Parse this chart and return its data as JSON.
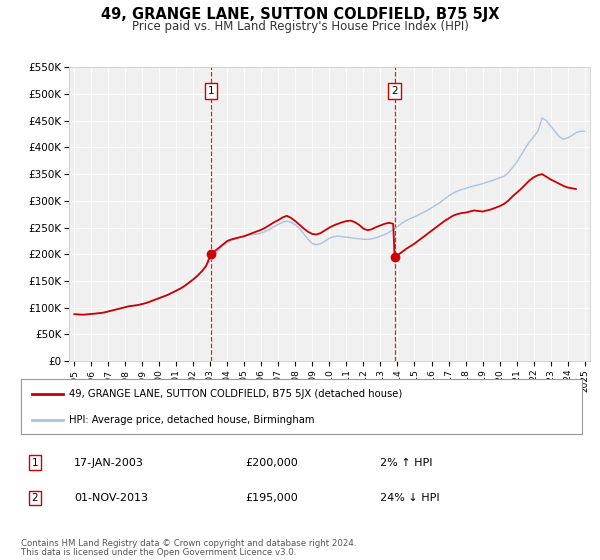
{
  "title": "49, GRANGE LANE, SUTTON COLDFIELD, B75 5JX",
  "subtitle": "Price paid vs. HM Land Registry's House Price Index (HPI)",
  "hpi_color": "#a8c4e0",
  "price_color": "#cc0000",
  "plot_bg": "#f0f0f0",
  "fig_bg": "#ffffff",
  "legend_entries": [
    "49, GRANGE LANE, SUTTON COLDFIELD, B75 5JX (detached house)",
    "HPI: Average price, detached house, Birmingham"
  ],
  "marker1_x": 2003.04,
  "marker1_y": 200000,
  "marker1_note": "17-JAN-2003",
  "marker1_amount": "£200,000",
  "marker1_pct": "2% ↑ HPI",
  "marker2_x": 2013.83,
  "marker2_y": 195000,
  "marker2_note": "01-NOV-2013",
  "marker2_amount": "£195,000",
  "marker2_pct": "24% ↓ HPI",
  "footer1": "Contains HM Land Registry data © Crown copyright and database right 2024.",
  "footer2": "This data is licensed under the Open Government Licence v3.0.",
  "ylim": [
    0,
    550000
  ],
  "yticks": [
    0,
    50000,
    100000,
    150000,
    200000,
    250000,
    300000,
    350000,
    400000,
    450000,
    500000,
    550000
  ],
  "ytick_labels": [
    "£0",
    "£50K",
    "£100K",
    "£150K",
    "£200K",
    "£250K",
    "£300K",
    "£350K",
    "£400K",
    "£450K",
    "£500K",
    "£550K"
  ],
  "xlim_start": 1994.7,
  "xlim_end": 2025.3,
  "hpi_data": [
    [
      1995.0,
      88000
    ],
    [
      1995.25,
      87500
    ],
    [
      1995.5,
      87000
    ],
    [
      1995.75,
      87500
    ],
    [
      1996.0,
      88500
    ],
    [
      1996.25,
      89000
    ],
    [
      1996.5,
      90000
    ],
    [
      1996.75,
      91000
    ],
    [
      1997.0,
      93000
    ],
    [
      1997.25,
      95000
    ],
    [
      1997.5,
      97000
    ],
    [
      1997.75,
      99000
    ],
    [
      1998.0,
      101000
    ],
    [
      1998.25,
      103000
    ],
    [
      1998.5,
      104000
    ],
    [
      1998.75,
      105000
    ],
    [
      1999.0,
      107000
    ],
    [
      1999.25,
      109000
    ],
    [
      1999.5,
      112000
    ],
    [
      1999.75,
      115000
    ],
    [
      2000.0,
      118000
    ],
    [
      2000.25,
      121000
    ],
    [
      2000.5,
      124000
    ],
    [
      2000.75,
      128000
    ],
    [
      2001.0,
      132000
    ],
    [
      2001.25,
      136000
    ],
    [
      2001.5,
      141000
    ],
    [
      2001.75,
      147000
    ],
    [
      2002.0,
      153000
    ],
    [
      2002.25,
      160000
    ],
    [
      2002.5,
      168000
    ],
    [
      2002.75,
      178000
    ],
    [
      2003.0,
      188000
    ],
    [
      2003.25,
      198000
    ],
    [
      2003.5,
      208000
    ],
    [
      2003.75,
      216000
    ],
    [
      2004.0,
      222000
    ],
    [
      2004.25,
      226000
    ],
    [
      2004.5,
      229000
    ],
    [
      2004.75,
      232000
    ],
    [
      2005.0,
      234000
    ],
    [
      2005.25,
      236000
    ],
    [
      2005.5,
      237000
    ],
    [
      2005.75,
      238000
    ],
    [
      2006.0,
      240000
    ],
    [
      2006.25,
      243000
    ],
    [
      2006.5,
      247000
    ],
    [
      2006.75,
      252000
    ],
    [
      2007.0,
      256000
    ],
    [
      2007.25,
      260000
    ],
    [
      2007.5,
      262000
    ],
    [
      2007.75,
      260000
    ],
    [
      2008.0,
      255000
    ],
    [
      2008.25,
      248000
    ],
    [
      2008.5,
      238000
    ],
    [
      2008.75,
      228000
    ],
    [
      2009.0,
      220000
    ],
    [
      2009.25,
      218000
    ],
    [
      2009.5,
      220000
    ],
    [
      2009.75,
      225000
    ],
    [
      2010.0,
      230000
    ],
    [
      2010.25,
      233000
    ],
    [
      2010.5,
      234000
    ],
    [
      2010.75,
      233000
    ],
    [
      2011.0,
      232000
    ],
    [
      2011.25,
      231000
    ],
    [
      2011.5,
      230000
    ],
    [
      2011.75,
      229000
    ],
    [
      2012.0,
      228000
    ],
    [
      2012.25,
      228000
    ],
    [
      2012.5,
      229000
    ],
    [
      2012.75,
      231000
    ],
    [
      2013.0,
      234000
    ],
    [
      2013.25,
      237000
    ],
    [
      2013.5,
      241000
    ],
    [
      2013.75,
      246000
    ],
    [
      2014.0,
      252000
    ],
    [
      2014.25,
      258000
    ],
    [
      2014.5,
      263000
    ],
    [
      2014.75,
      267000
    ],
    [
      2015.0,
      270000
    ],
    [
      2015.25,
      274000
    ],
    [
      2015.5,
      278000
    ],
    [
      2015.75,
      282000
    ],
    [
      2016.0,
      287000
    ],
    [
      2016.25,
      292000
    ],
    [
      2016.5,
      297000
    ],
    [
      2016.75,
      303000
    ],
    [
      2017.0,
      309000
    ],
    [
      2017.25,
      314000
    ],
    [
      2017.5,
      318000
    ],
    [
      2017.75,
      321000
    ],
    [
      2018.0,
      323000
    ],
    [
      2018.25,
      326000
    ],
    [
      2018.5,
      328000
    ],
    [
      2018.75,
      330000
    ],
    [
      2019.0,
      332000
    ],
    [
      2019.25,
      335000
    ],
    [
      2019.5,
      337000
    ],
    [
      2019.75,
      340000
    ],
    [
      2020.0,
      343000
    ],
    [
      2020.25,
      346000
    ],
    [
      2020.5,
      352000
    ],
    [
      2020.75,
      362000
    ],
    [
      2021.0,
      372000
    ],
    [
      2021.25,
      385000
    ],
    [
      2021.5,
      398000
    ],
    [
      2021.75,
      410000
    ],
    [
      2022.0,
      420000
    ],
    [
      2022.25,
      430000
    ],
    [
      2022.5,
      455000
    ],
    [
      2022.75,
      450000
    ],
    [
      2023.0,
      440000
    ],
    [
      2023.25,
      430000
    ],
    [
      2023.5,
      420000
    ],
    [
      2023.75,
      415000
    ],
    [
      2024.0,
      418000
    ],
    [
      2024.25,
      422000
    ],
    [
      2024.5,
      428000
    ],
    [
      2024.75,
      430000
    ],
    [
      2025.0,
      430000
    ]
  ],
  "price_data": [
    [
      1995.0,
      88000
    ],
    [
      1995.25,
      87500
    ],
    [
      1995.5,
      87000
    ],
    [
      1995.75,
      87500
    ],
    [
      1996.0,
      88500
    ],
    [
      1996.25,
      89000
    ],
    [
      1996.5,
      90000
    ],
    [
      1996.75,
      91000
    ],
    [
      1997.0,
      93000
    ],
    [
      1997.25,
      95000
    ],
    [
      1997.5,
      97000
    ],
    [
      1997.75,
      99000
    ],
    [
      1998.0,
      101000
    ],
    [
      1998.25,
      103000
    ],
    [
      1998.5,
      104000
    ],
    [
      1998.75,
      105000
    ],
    [
      1999.0,
      107000
    ],
    [
      1999.25,
      109000
    ],
    [
      1999.5,
      112000
    ],
    [
      1999.75,
      115000
    ],
    [
      2000.0,
      118000
    ],
    [
      2000.25,
      121000
    ],
    [
      2000.5,
      124000
    ],
    [
      2000.75,
      128000
    ],
    [
      2001.0,
      132000
    ],
    [
      2001.25,
      136000
    ],
    [
      2001.5,
      141000
    ],
    [
      2001.75,
      147000
    ],
    [
      2002.0,
      153000
    ],
    [
      2002.25,
      160000
    ],
    [
      2002.5,
      168000
    ],
    [
      2002.75,
      178000
    ],
    [
      2003.04,
      200000
    ],
    [
      2004.0,
      225000
    ],
    [
      2004.25,
      228000
    ],
    [
      2004.5,
      230000
    ],
    [
      2004.75,
      232000
    ],
    [
      2005.0,
      234000
    ],
    [
      2005.25,
      237000
    ],
    [
      2005.5,
      240000
    ],
    [
      2005.75,
      243000
    ],
    [
      2006.0,
      246000
    ],
    [
      2006.25,
      250000
    ],
    [
      2006.5,
      255000
    ],
    [
      2006.75,
      260000
    ],
    [
      2007.0,
      264000
    ],
    [
      2007.25,
      269000
    ],
    [
      2007.5,
      272000
    ],
    [
      2007.75,
      268000
    ],
    [
      2008.0,
      262000
    ],
    [
      2008.25,
      255000
    ],
    [
      2008.5,
      248000
    ],
    [
      2008.75,
      242000
    ],
    [
      2009.0,
      238000
    ],
    [
      2009.25,
      237000
    ],
    [
      2009.5,
      240000
    ],
    [
      2009.75,
      245000
    ],
    [
      2010.0,
      250000
    ],
    [
      2010.25,
      254000
    ],
    [
      2010.5,
      257000
    ],
    [
      2010.75,
      260000
    ],
    [
      2011.0,
      262000
    ],
    [
      2011.25,
      263000
    ],
    [
      2011.5,
      260000
    ],
    [
      2011.75,
      255000
    ],
    [
      2012.0,
      248000
    ],
    [
      2012.25,
      245000
    ],
    [
      2012.5,
      247000
    ],
    [
      2012.75,
      251000
    ],
    [
      2013.0,
      254000
    ],
    [
      2013.25,
      257000
    ],
    [
      2013.5,
      259000
    ],
    [
      2013.75,
      257000
    ],
    [
      2013.83,
      195000
    ],
    [
      2014.0,
      198000
    ],
    [
      2014.25,
      204000
    ],
    [
      2014.5,
      210000
    ],
    [
      2014.75,
      215000
    ],
    [
      2015.0,
      220000
    ],
    [
      2015.25,
      226000
    ],
    [
      2015.5,
      232000
    ],
    [
      2015.75,
      238000
    ],
    [
      2016.0,
      244000
    ],
    [
      2016.25,
      250000
    ],
    [
      2016.5,
      256000
    ],
    [
      2016.75,
      262000
    ],
    [
      2017.0,
      267000
    ],
    [
      2017.25,
      272000
    ],
    [
      2017.5,
      275000
    ],
    [
      2017.75,
      277000
    ],
    [
      2018.0,
      278000
    ],
    [
      2018.25,
      280000
    ],
    [
      2018.5,
      282000
    ],
    [
      2018.75,
      281000
    ],
    [
      2019.0,
      280000
    ],
    [
      2019.25,
      282000
    ],
    [
      2019.5,
      284000
    ],
    [
      2019.75,
      287000
    ],
    [
      2020.0,
      290000
    ],
    [
      2020.25,
      294000
    ],
    [
      2020.5,
      300000
    ],
    [
      2020.75,
      308000
    ],
    [
      2021.0,
      315000
    ],
    [
      2021.25,
      322000
    ],
    [
      2021.5,
      330000
    ],
    [
      2021.75,
      338000
    ],
    [
      2022.0,
      344000
    ],
    [
      2022.25,
      348000
    ],
    [
      2022.5,
      350000
    ],
    [
      2022.75,
      345000
    ],
    [
      2023.0,
      340000
    ],
    [
      2023.25,
      336000
    ],
    [
      2023.5,
      332000
    ],
    [
      2023.75,
      328000
    ],
    [
      2024.0,
      325000
    ],
    [
      2024.5,
      322000
    ]
  ]
}
